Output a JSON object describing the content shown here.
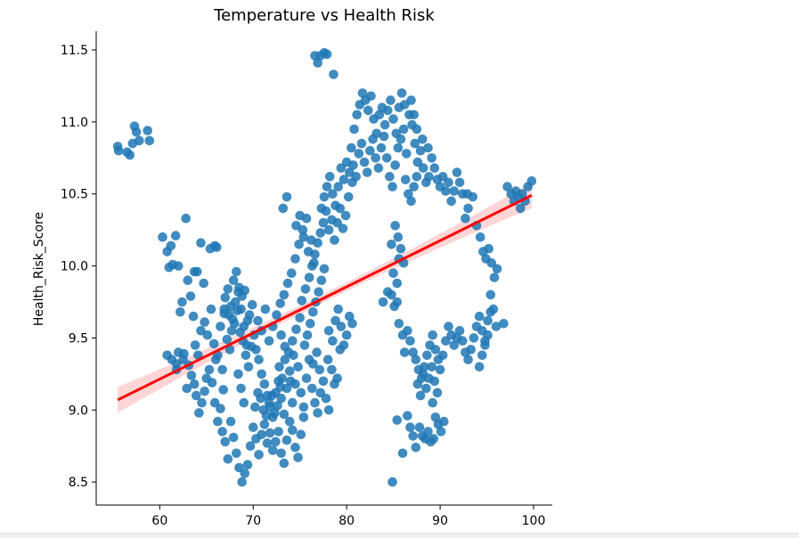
{
  "chart_data": {
    "type": "scatter",
    "title": "Temperature vs Health Risk",
    "xlabel": "",
    "ylabel": "Health_Risk_Score",
    "xlim": [
      53.2,
      102.0
    ],
    "ylim": [
      8.34,
      11.63
    ],
    "x_ticks": [
      60,
      70,
      80,
      90,
      100
    ],
    "y_ticks": [
      8.5,
      9.0,
      9.5,
      10.0,
      10.5,
      11.0,
      11.5
    ],
    "grid": false,
    "point_color": "#1f77b4",
    "regression": {
      "color": "#ff0000",
      "band_color": "#ffb3b3",
      "x": [
        55.5,
        99.8
      ],
      "y": [
        9.07,
        10.49
      ],
      "ci_halfwidth_ends": [
        0.09,
        0.09
      ],
      "ci_halfwidth_center": 0.03
    },
    "points": [
      [
        55.5,
        10.83
      ],
      [
        55.6,
        10.8
      ],
      [
        56.5,
        10.79
      ],
      [
        56.8,
        10.77
      ],
      [
        57.1,
        10.85
      ],
      [
        57.3,
        10.97
      ],
      [
        57.5,
        10.93
      ],
      [
        57.8,
        10.87
      ],
      [
        58.7,
        10.94
      ],
      [
        58.9,
        10.87
      ],
      [
        60.3,
        10.2
      ],
      [
        60.8,
        10.1
      ],
      [
        61.0,
        9.99
      ],
      [
        61.2,
        10.14
      ],
      [
        61.4,
        10.01
      ],
      [
        61.7,
        10.21
      ],
      [
        62.0,
        10.0
      ],
      [
        62.2,
        9.68
      ],
      [
        62.4,
        9.75
      ],
      [
        62.8,
        10.33
      ],
      [
        63.0,
        9.9
      ],
      [
        63.3,
        9.79
      ],
      [
        63.6,
        9.65
      ],
      [
        63.7,
        9.96
      ],
      [
        64.0,
        9.96
      ],
      [
        64.4,
        10.16
      ],
      [
        64.7,
        9.88
      ],
      [
        65.4,
        10.12
      ],
      [
        65.9,
        10.14
      ],
      [
        66.1,
        10.13
      ],
      [
        60.8,
        9.38
      ],
      [
        61.3,
        9.35
      ],
      [
        61.8,
        9.32
      ],
      [
        62.0,
        9.4
      ],
      [
        62.6,
        9.39
      ],
      [
        62.9,
        9.15
      ],
      [
        63.1,
        9.31
      ],
      [
        63.4,
        9.24
      ],
      [
        63.7,
        9.18
      ],
      [
        63.9,
        9.1
      ],
      [
        64.2,
        8.98
      ],
      [
        64.5,
        9.05
      ],
      [
        64.8,
        9.13
      ],
      [
        65.0,
        9.22
      ],
      [
        65.3,
        9.28
      ],
      [
        65.6,
        9.19
      ],
      [
        65.9,
        9.05
      ],
      [
        66.2,
        8.92
      ],
      [
        66.5,
        9.01
      ],
      [
        66.8,
        9.14
      ],
      [
        64.4,
        9.55
      ],
      [
        64.8,
        9.61
      ],
      [
        65.1,
        9.52
      ],
      [
        65.5,
        9.7
      ],
      [
        65.8,
        9.46
      ],
      [
        66.2,
        9.38
      ],
      [
        66.5,
        9.58
      ],
      [
        66.9,
        9.67
      ],
      [
        67.2,
        9.49
      ],
      [
        67.5,
        9.42
      ],
      [
        67.8,
        9.63
      ],
      [
        68.1,
        9.75
      ],
      [
        68.4,
        9.82
      ],
      [
        68.7,
        9.7
      ],
      [
        69.0,
        9.58
      ],
      [
        69.3,
        9.45
      ],
      [
        69.6,
        9.66
      ],
      [
        69.9,
        9.73
      ],
      [
        66.0,
        9.35
      ],
      [
        66.7,
        9.28
      ],
      [
        67.0,
        9.78
      ],
      [
        67.3,
        9.84
      ],
      [
        67.6,
        9.72
      ],
      [
        67.9,
        9.9
      ],
      [
        68.2,
        9.96
      ],
      [
        68.5,
        9.85
      ],
      [
        68.8,
        9.79
      ],
      [
        69.1,
        9.83
      ],
      [
        69.4,
        9.62
      ],
      [
        66.9,
        9.7
      ],
      [
        67.4,
        9.66
      ],
      [
        67.7,
        9.55
      ],
      [
        68.0,
        9.6
      ],
      [
        68.3,
        9.69
      ],
      [
        68.6,
        9.54
      ],
      [
        68.9,
        9.48
      ],
      [
        69.2,
        9.38
      ],
      [
        69.5,
        9.3
      ],
      [
        69.8,
        9.44
      ],
      [
        70.1,
        9.52
      ],
      [
        70.3,
        9.42
      ],
      [
        70.6,
        9.35
      ],
      [
        70.9,
        9.25
      ],
      [
        71.2,
        9.18
      ],
      [
        71.5,
        9.1
      ],
      [
        71.8,
        9.02
      ],
      [
        72.1,
        8.95
      ],
      [
        72.4,
        9.12
      ],
      [
        72.7,
        9.2
      ],
      [
        73.0,
        9.08
      ],
      [
        73.3,
        8.97
      ],
      [
        73.6,
        9.15
      ],
      [
        73.9,
        9.27
      ],
      [
        74.2,
        9.05
      ],
      [
        74.5,
        9.18
      ],
      [
        74.8,
        9.3
      ],
      [
        75.1,
        9.12
      ],
      [
        75.4,
        9.02
      ],
      [
        75.7,
        9.22
      ],
      [
        76.0,
        9.35
      ],
      [
        66.7,
        8.85
      ],
      [
        67.0,
        8.78
      ],
      [
        67.3,
        8.66
      ],
      [
        67.6,
        8.92
      ],
      [
        67.9,
        8.81
      ],
      [
        68.2,
        8.7
      ],
      [
        68.5,
        8.6
      ],
      [
        68.8,
        8.5
      ],
      [
        69.1,
        8.56
      ],
      [
        69.4,
        8.62
      ],
      [
        69.7,
        8.75
      ],
      [
        70.0,
        8.88
      ],
      [
        70.3,
        8.8
      ],
      [
        70.6,
        8.69
      ],
      [
        70.9,
        8.83
      ],
      [
        71.2,
        8.9
      ],
      [
        71.5,
        8.77
      ],
      [
        71.8,
        8.84
      ],
      [
        72.1,
        8.72
      ],
      [
        72.4,
        8.78
      ],
      [
        72.7,
        8.85
      ],
      [
        73.0,
        8.7
      ],
      [
        73.3,
        8.63
      ],
      [
        73.6,
        8.79
      ],
      [
        73.9,
        8.92
      ],
      [
        74.2,
        8.86
      ],
      [
        74.5,
        8.74
      ],
      [
        74.8,
        8.67
      ],
      [
        75.1,
        8.83
      ],
      [
        75.4,
        8.95
      ],
      [
        70.2,
        9.02
      ],
      [
        70.5,
        9.12
      ],
      [
        70.8,
        9.08
      ],
      [
        71.1,
        9.0
      ],
      [
        71.4,
        8.96
      ],
      [
        71.7,
        9.05
      ],
      [
        72.0,
        9.1
      ],
      [
        72.3,
        8.98
      ],
      [
        72.6,
        9.03
      ],
      [
        72.9,
        9.16
      ],
      [
        70.5,
        9.62
      ],
      [
        70.9,
        9.55
      ],
      [
        71.3,
        9.7
      ],
      [
        71.7,
        9.48
      ],
      [
        72.1,
        9.58
      ],
      [
        72.5,
        9.66
      ],
      [
        72.9,
        9.74
      ],
      [
        73.3,
        9.8
      ],
      [
        73.7,
        9.88
      ],
      [
        74.1,
        9.95
      ],
      [
        74.5,
        10.05
      ],
      [
        74.9,
        10.15
      ],
      [
        75.3,
        10.25
      ],
      [
        75.7,
        10.33
      ],
      [
        73.0,
        9.52
      ],
      [
        73.4,
        9.44
      ],
      [
        73.8,
        9.4
      ],
      [
        74.2,
        9.48
      ],
      [
        74.6,
        9.56
      ],
      [
        75.0,
        9.64
      ],
      [
        75.5,
        9.45
      ],
      [
        75.8,
        9.52
      ],
      [
        76.1,
        9.6
      ],
      [
        76.4,
        9.68
      ],
      [
        76.7,
        9.75
      ],
      [
        77.0,
        9.82
      ],
      [
        77.3,
        9.9
      ],
      [
        77.6,
        9.98
      ],
      [
        75.2,
        9.76
      ],
      [
        75.6,
        9.84
      ],
      [
        76.0,
        9.92
      ],
      [
        76.3,
        10.0
      ],
      [
        76.6,
        10.08
      ],
      [
        76.9,
        10.16
      ],
      [
        77.2,
        10.23
      ],
      [
        77.5,
        10.3
      ],
      [
        77.8,
        10.38
      ],
      [
        75.9,
        10.1
      ],
      [
        76.2,
        10.18
      ],
      [
        76.5,
        10.02
      ],
      [
        73.2,
        10.4
      ],
      [
        73.6,
        10.48
      ],
      [
        74.6,
        10.28
      ],
      [
        75.0,
        10.35
      ],
      [
        75.4,
        10.2
      ],
      [
        72.8,
        9.3
      ],
      [
        73.1,
        9.22
      ],
      [
        73.4,
        9.35
      ],
      [
        74.0,
        9.2
      ],
      [
        74.3,
        9.38
      ],
      [
        76.3,
        9.15
      ],
      [
        76.6,
        9.05
      ],
      [
        76.9,
        8.98
      ],
      [
        77.2,
        9.12
      ],
      [
        77.5,
        9.2
      ],
      [
        77.8,
        9.08
      ],
      [
        78.1,
        9.0
      ],
      [
        76.4,
        9.32
      ],
      [
        76.8,
        9.4
      ],
      [
        77.1,
        9.28
      ],
      [
        76.6,
        11.46
      ],
      [
        76.9,
        11.41
      ],
      [
        77.2,
        11.46
      ],
      [
        77.6,
        11.48
      ],
      [
        77.9,
        11.47
      ],
      [
        78.6,
        11.33
      ],
      [
        78.1,
        9.55
      ],
      [
        78.5,
        9.48
      ],
      [
        78.8,
        9.62
      ],
      [
        79.1,
        9.7
      ],
      [
        79.4,
        9.58
      ],
      [
        79.7,
        9.45
      ],
      [
        80.0,
        9.52
      ],
      [
        80.3,
        9.65
      ],
      [
        80.6,
        9.6
      ],
      [
        78.0,
        9.35
      ],
      [
        78.4,
        9.28
      ],
      [
        78.7,
        9.18
      ],
      [
        79.0,
        9.22
      ],
      [
        79.3,
        9.42
      ],
      [
        77.3,
        10.4
      ],
      [
        77.6,
        10.48
      ],
      [
        77.9,
        10.55
      ],
      [
        78.2,
        10.62
      ],
      [
        78.5,
        10.5
      ],
      [
        78.8,
        10.42
      ],
      [
        79.1,
        10.55
      ],
      [
        79.4,
        10.68
      ],
      [
        79.7,
        10.6
      ],
      [
        80.0,
        10.72
      ],
      [
        80.3,
        10.65
      ],
      [
        80.6,
        10.58
      ],
      [
        78.1,
        10.25
      ],
      [
        78.4,
        10.32
      ],
      [
        78.7,
        10.18
      ],
      [
        79.0,
        10.3
      ],
      [
        79.3,
        10.4
      ],
      [
        79.6,
        10.26
      ],
      [
        79.9,
        10.35
      ],
      [
        80.2,
        10.48
      ],
      [
        80.5,
        10.82
      ],
      [
        80.8,
        10.95
      ],
      [
        81.1,
        11.05
      ],
      [
        81.4,
        11.12
      ],
      [
        81.7,
        11.2
      ],
      [
        82.0,
        11.15
      ],
      [
        82.3,
        11.08
      ],
      [
        82.6,
        11.18
      ],
      [
        82.9,
        11.02
      ],
      [
        83.2,
        10.92
      ],
      [
        83.5,
        11.05
      ],
      [
        83.8,
        11.1
      ],
      [
        84.1,
        10.98
      ],
      [
        84.4,
        11.08
      ],
      [
        84.7,
        11.15
      ],
      [
        85.0,
        11.02
      ],
      [
        85.3,
        10.92
      ],
      [
        85.6,
        11.1
      ],
      [
        85.9,
        11.2
      ],
      [
        86.2,
        11.12
      ],
      [
        80.7,
        10.7
      ],
      [
        81.0,
        10.62
      ],
      [
        81.3,
        10.78
      ],
      [
        81.6,
        10.85
      ],
      [
        81.9,
        10.72
      ],
      [
        82.2,
        10.65
      ],
      [
        82.5,
        10.8
      ],
      [
        82.8,
        10.88
      ],
      [
        83.1,
        10.75
      ],
      [
        83.4,
        10.68
      ],
      [
        83.7,
        10.82
      ],
      [
        84.0,
        10.9
      ],
      [
        84.3,
        10.75
      ],
      [
        84.6,
        10.62
      ],
      [
        84.9,
        10.55
      ],
      [
        85.2,
        10.7
      ],
      [
        85.5,
        10.82
      ],
      [
        85.8,
        10.88
      ],
      [
        86.1,
        10.95
      ],
      [
        86.4,
        10.78
      ],
      [
        86.7,
        11.05
      ],
      [
        87.0,
        10.98
      ],
      [
        87.3,
        10.85
      ],
      [
        87.6,
        10.72
      ],
      [
        87.9,
        10.8
      ],
      [
        88.2,
        10.68
      ],
      [
        88.5,
        10.58
      ],
      [
        88.8,
        10.62
      ],
      [
        89.1,
        10.75
      ],
      [
        89.4,
        10.68
      ],
      [
        89.7,
        10.6
      ],
      [
        90.0,
        10.55
      ],
      [
        90.3,
        10.62
      ],
      [
        90.6,
        10.52
      ],
      [
        90.9,
        10.58
      ],
      [
        91.2,
        10.45
      ],
      [
        91.5,
        10.52
      ],
      [
        91.8,
        10.65
      ],
      [
        92.1,
        10.58
      ],
      [
        92.4,
        10.5
      ],
      [
        87.2,
        11.05
      ],
      [
        86.9,
        11.15
      ],
      [
        87.5,
        10.95
      ],
      [
        88.1,
        10.88
      ],
      [
        88.7,
        10.82
      ],
      [
        86.3,
        10.6
      ],
      [
        86.6,
        10.5
      ],
      [
        86.9,
        10.45
      ],
      [
        87.2,
        10.55
      ],
      [
        87.5,
        10.62
      ],
      [
        85.2,
        10.28
      ],
      [
        85.5,
        10.2
      ],
      [
        85.8,
        10.12
      ],
      [
        86.1,
        10.02
      ],
      [
        85.0,
        9.95
      ],
      [
        84.8,
        10.15
      ],
      [
        85.4,
        9.88
      ],
      [
        85.6,
        10.05
      ],
      [
        93.0,
        10.4
      ],
      [
        93.5,
        10.48
      ],
      [
        92.7,
        10.33
      ],
      [
        93.9,
        10.28
      ],
      [
        94.3,
        10.2
      ],
      [
        94.6,
        10.1
      ],
      [
        94.9,
        10.05
      ],
      [
        95.2,
        10.12
      ],
      [
        95.5,
        10.02
      ],
      [
        95.8,
        9.92
      ],
      [
        96.1,
        9.98
      ],
      [
        92.9,
        10.5
      ],
      [
        97.2,
        10.55
      ],
      [
        97.6,
        10.5
      ],
      [
        97.9,
        10.45
      ],
      [
        98.1,
        10.52
      ],
      [
        98.4,
        10.48
      ],
      [
        98.8,
        10.5
      ],
      [
        99.1,
        10.45
      ],
      [
        99.4,
        10.55
      ],
      [
        99.8,
        10.59
      ],
      [
        98.6,
        10.4
      ],
      [
        84.8,
        9.8
      ],
      [
        85.1,
        9.72
      ],
      [
        85.4,
        9.75
      ],
      [
        83.9,
        9.75
      ],
      [
        84.4,
        9.82
      ],
      [
        85.6,
        9.6
      ],
      [
        86.0,
        9.52
      ],
      [
        86.2,
        9.4
      ],
      [
        86.5,
        9.55
      ],
      [
        86.8,
        9.48
      ],
      [
        87.1,
        9.4
      ],
      [
        87.4,
        9.35
      ],
      [
        87.7,
        9.28
      ],
      [
        88.0,
        9.22
      ],
      [
        88.3,
        9.3
      ],
      [
        88.6,
        9.38
      ],
      [
        88.9,
        9.45
      ],
      [
        89.2,
        9.52
      ],
      [
        89.5,
        9.42
      ],
      [
        89.8,
        9.35
      ],
      [
        87.6,
        9.18
      ],
      [
        87.9,
        9.1
      ],
      [
        88.2,
        9.25
      ],
      [
        88.5,
        9.15
      ],
      [
        88.8,
        9.22
      ],
      [
        89.1,
        9.3
      ],
      [
        89.4,
        9.2
      ],
      [
        89.7,
        9.12
      ],
      [
        90.0,
        9.28
      ],
      [
        90.3,
        9.38
      ],
      [
        90.6,
        9.48
      ],
      [
        90.9,
        9.58
      ],
      [
        91.2,
        9.52
      ],
      [
        91.5,
        9.45
      ],
      [
        91.8,
        9.5
      ],
      [
        92.1,
        9.55
      ],
      [
        92.4,
        9.48
      ],
      [
        92.7,
        9.4
      ],
      [
        93.0,
        9.35
      ],
      [
        93.3,
        9.42
      ],
      [
        93.6,
        9.5
      ],
      [
        93.9,
        9.58
      ],
      [
        94.2,
        9.65
      ],
      [
        94.5,
        9.55
      ],
      [
        94.8,
        9.48
      ],
      [
        95.1,
        9.62
      ],
      [
        95.4,
        9.68
      ],
      [
        95.7,
        9.7
      ],
      [
        96.0,
        9.58
      ],
      [
        94.2,
        9.3
      ],
      [
        94.5,
        9.38
      ],
      [
        94.8,
        9.45
      ],
      [
        95.1,
        9.52
      ],
      [
        95.4,
        9.8
      ],
      [
        96.8,
        9.6
      ],
      [
        89.2,
        9.05
      ],
      [
        89.5,
        8.95
      ],
      [
        89.8,
        8.9
      ],
      [
        90.1,
        8.85
      ],
      [
        90.4,
        8.92
      ],
      [
        87.8,
        8.88
      ],
      [
        88.1,
        8.82
      ],
      [
        88.4,
        8.8
      ],
      [
        88.7,
        8.85
      ],
      [
        89.0,
        8.78
      ],
      [
        89.3,
        8.8
      ],
      [
        86.5,
        8.96
      ],
      [
        86.8,
        8.88
      ],
      [
        87.1,
        8.82
      ],
      [
        87.4,
        8.74
      ],
      [
        86.0,
        8.7
      ],
      [
        85.4,
        8.93
      ],
      [
        84.9,
        8.5
      ],
      [
        62.5,
        9.35
      ],
      [
        61.8,
        9.28
      ],
      [
        63.8,
        9.45
      ],
      [
        64.1,
        9.38
      ],
      [
        68.4,
        9.25
      ],
      [
        68.7,
        9.15
      ],
      [
        69.0,
        9.05
      ]
    ]
  }
}
